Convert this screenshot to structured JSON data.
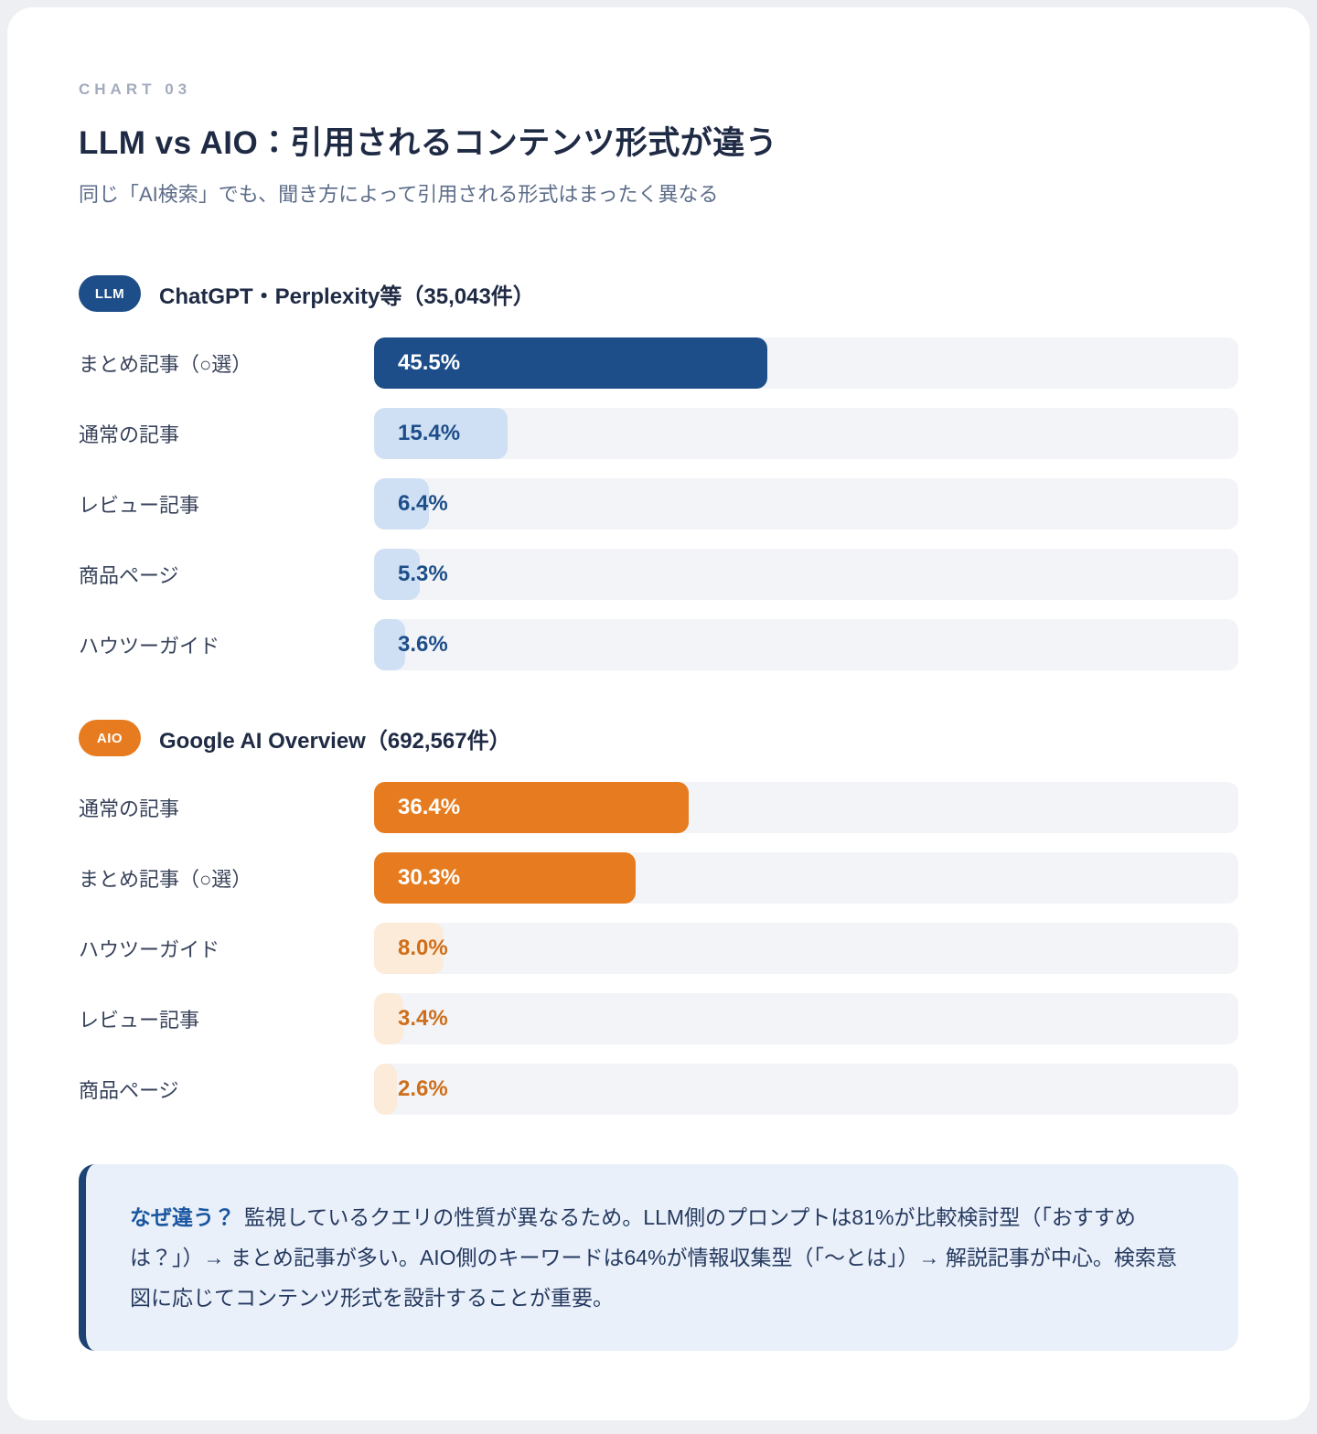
{
  "page": {
    "eyebrow": "CHART 03",
    "title": "LLM vs AIO：引用されるコンテンツ形式が違う",
    "subtitle": "同じ「AI検索」でも、聞き方によって引用される形式はまったく異なる"
  },
  "chart_data": [
    {
      "type": "bar",
      "orientation": "horizontal",
      "badge": "LLM",
      "title": "ChatGPT・Perplexity等（35,043件）",
      "categories": [
        "まとめ記事（○選）",
        "通常の記事",
        "レビュー記事",
        "商品ページ",
        "ハウツーガイド"
      ],
      "values": [
        45.5,
        15.4,
        6.4,
        5.3,
        3.6
      ],
      "value_labels": [
        "45.5%",
        "15.4%",
        "6.4%",
        "5.3%",
        "3.6%"
      ],
      "emphasized": [
        true,
        false,
        false,
        false,
        false
      ],
      "xlim": [
        0,
        100
      ],
      "colors": {
        "accent": "#1D4E89",
        "accent_light": "#CFE0F4",
        "value_text_on_light": "#1D4E89",
        "value_text_on_accent": "#FFFFFF"
      }
    },
    {
      "type": "bar",
      "orientation": "horizontal",
      "badge": "AIO",
      "title": "Google AI Overview（692,567件）",
      "categories": [
        "通常の記事",
        "まとめ記事（○選）",
        "ハウツーガイド",
        "レビュー記事",
        "商品ページ"
      ],
      "values": [
        36.4,
        30.3,
        8.0,
        3.4,
        2.6
      ],
      "value_labels": [
        "36.4%",
        "30.3%",
        "8.0%",
        "3.4%",
        "2.6%"
      ],
      "emphasized": [
        true,
        true,
        false,
        false,
        false
      ],
      "xlim": [
        0,
        100
      ],
      "colors": {
        "accent": "#E67C1F",
        "accent_light": "#FCEBD9",
        "value_text_on_light": "#CE6E1A",
        "value_text_on_accent": "#FFFFFF"
      }
    }
  ],
  "note": {
    "label": "なぜ違う？",
    "text": "監視しているクエリの性質が異なるため。LLM側のプロンプトは81%が比較検討型（「おすすめは？」）→ まとめ記事が多い。AIO側のキーワードは64%が情報収集型（「〜とは」）→ 解説記事が中心。検索意図に応じてコンテンツ形式を設計することが重要。"
  }
}
